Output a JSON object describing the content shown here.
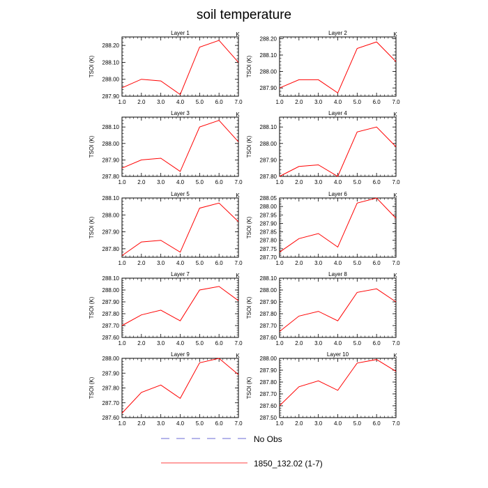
{
  "title": "soil temperature",
  "legend": {
    "no_obs_label": "No Obs",
    "no_obs_color": "#6b6bd6",
    "model_label": "1850_132.02 (1-7)",
    "model_color": "#ff0000"
  },
  "units_label": "K",
  "ylabel": "TSOI  (K)",
  "chart_data": [
    {
      "type": "line",
      "title": "Layer 1",
      "x": [
        1,
        2,
        3,
        4,
        5,
        6,
        7
      ],
      "series": [
        {
          "name": "1850_132.02 (1-7)",
          "values": [
            287.95,
            288.0,
            287.99,
            287.91,
            288.19,
            288.23,
            288.1
          ]
        }
      ],
      "xlim": [
        1,
        7
      ],
      "ylim": [
        287.9,
        288.25
      ],
      "yticks": [
        287.9,
        288.0,
        288.1,
        288.2
      ],
      "yfmt": 2
    },
    {
      "type": "line",
      "title": "Layer 2",
      "x": [
        1,
        2,
        3,
        4,
        5,
        6,
        7
      ],
      "series": [
        {
          "name": "1850_132.02 (1-7)",
          "values": [
            287.9,
            287.95,
            287.95,
            287.87,
            288.14,
            288.18,
            288.06
          ]
        }
      ],
      "xlim": [
        1,
        7
      ],
      "ylim": [
        287.85,
        288.21
      ],
      "yticks": [
        287.9,
        288.0,
        288.1,
        288.2
      ],
      "yfmt": 2
    },
    {
      "type": "line",
      "title": "Layer 3",
      "x": [
        1,
        2,
        3,
        4,
        5,
        6,
        7
      ],
      "series": [
        {
          "name": "1850_132.02 (1-7)",
          "values": [
            287.85,
            287.9,
            287.91,
            287.83,
            288.1,
            288.14,
            288.01
          ]
        }
      ],
      "xlim": [
        1,
        7
      ],
      "ylim": [
        287.8,
        288.16
      ],
      "yticks": [
        287.8,
        287.9,
        288.0,
        288.1
      ],
      "yfmt": 2
    },
    {
      "type": "line",
      "title": "Layer 4",
      "x": [
        1,
        2,
        3,
        4,
        5,
        6,
        7
      ],
      "series": [
        {
          "name": "1850_132.02 (1-7)",
          "values": [
            287.8,
            287.86,
            287.87,
            287.8,
            288.07,
            288.1,
            287.98
          ]
        }
      ],
      "xlim": [
        1,
        7
      ],
      "ylim": [
        287.8,
        288.16
      ],
      "yticks": [
        287.8,
        287.9,
        288.0,
        288.1
      ],
      "yfmt": 2
    },
    {
      "type": "line",
      "title": "Layer 5",
      "x": [
        1,
        2,
        3,
        4,
        5,
        6,
        7
      ],
      "series": [
        {
          "name": "1850_132.02 (1-7)",
          "values": [
            287.76,
            287.84,
            287.85,
            287.78,
            288.04,
            288.07,
            287.96
          ]
        }
      ],
      "xlim": [
        1,
        7
      ],
      "ylim": [
        287.75,
        288.1
      ],
      "yticks": [
        287.8,
        287.9,
        288.0,
        288.1
      ],
      "yfmt": 2
    },
    {
      "type": "line",
      "title": "Layer 6",
      "x": [
        1,
        2,
        3,
        4,
        5,
        6,
        7
      ],
      "series": [
        {
          "name": "1850_132.02 (1-7)",
          "values": [
            287.73,
            287.81,
            287.84,
            287.76,
            288.02,
            288.05,
            287.93
          ]
        }
      ],
      "xlim": [
        1,
        7
      ],
      "ylim": [
        287.7,
        288.05
      ],
      "yticks": [
        287.7,
        287.75,
        287.8,
        287.85,
        287.9,
        287.95,
        288.0,
        288.05
      ],
      "yfmt": 2
    },
    {
      "type": "line",
      "title": "Layer 7",
      "x": [
        1,
        2,
        3,
        4,
        5,
        6,
        7
      ],
      "series": [
        {
          "name": "1850_132.02 (1-7)",
          "values": [
            287.7,
            287.79,
            287.83,
            287.74,
            288.0,
            288.03,
            287.91
          ]
        }
      ],
      "xlim": [
        1,
        7
      ],
      "ylim": [
        287.6,
        288.1
      ],
      "yticks": [
        287.6,
        287.7,
        287.8,
        287.9,
        288.0,
        288.1
      ],
      "yfmt": 2
    },
    {
      "type": "line",
      "title": "Layer 8",
      "x": [
        1,
        2,
        3,
        4,
        5,
        6,
        7
      ],
      "series": [
        {
          "name": "1850_132.02 (1-7)",
          "values": [
            287.65,
            287.78,
            287.82,
            287.74,
            287.98,
            288.01,
            287.9
          ]
        }
      ],
      "xlim": [
        1,
        7
      ],
      "ylim": [
        287.6,
        288.1
      ],
      "yticks": [
        287.6,
        287.7,
        287.8,
        287.9,
        288.0,
        288.1
      ],
      "yfmt": 2
    },
    {
      "type": "line",
      "title": "Layer 9",
      "x": [
        1,
        2,
        3,
        4,
        5,
        6,
        7
      ],
      "series": [
        {
          "name": "1850_132.02 (1-7)",
          "values": [
            287.63,
            287.77,
            287.82,
            287.73,
            287.97,
            288.0,
            287.89
          ]
        }
      ],
      "xlim": [
        1,
        7
      ],
      "ylim": [
        287.6,
        288.0
      ],
      "yticks": [
        287.6,
        287.7,
        287.8,
        287.9,
        288.0
      ],
      "yfmt": 2
    },
    {
      "type": "line",
      "title": "Layer 10",
      "x": [
        1,
        2,
        3,
        4,
        5,
        6,
        7
      ],
      "series": [
        {
          "name": "1850_132.02 (1-7)",
          "values": [
            287.6,
            287.76,
            287.81,
            287.73,
            287.96,
            287.99,
            287.89
          ]
        }
      ],
      "xlim": [
        1,
        7
      ],
      "ylim": [
        287.5,
        288.0
      ],
      "yticks": [
        287.5,
        287.6,
        287.7,
        287.8,
        287.9,
        288.0
      ],
      "yfmt": 2
    }
  ],
  "xticks": [
    1,
    2,
    3,
    4,
    5,
    6,
    7
  ],
  "xfmt": 1
}
